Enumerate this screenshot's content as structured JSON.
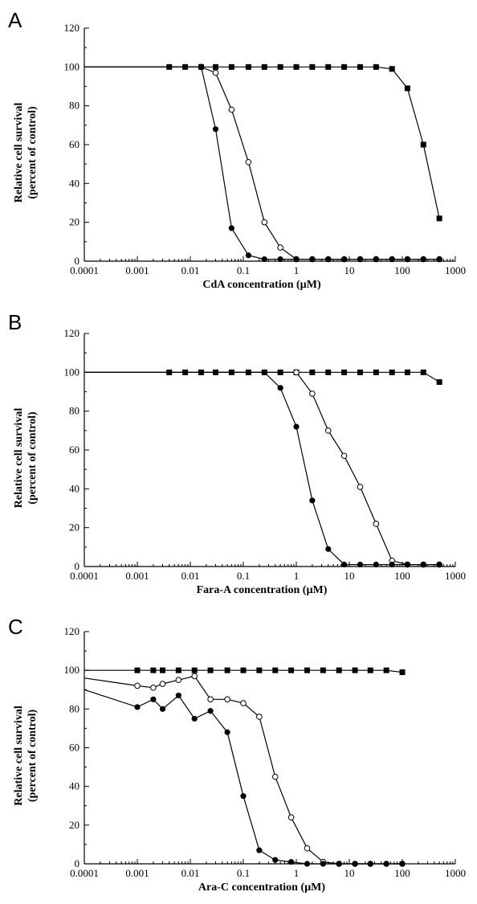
{
  "chart_data": [
    {
      "type": "line",
      "panel": "A",
      "xlabel": "CdA concentration (µM)",
      "ylabel": [
        "Relative cell survival",
        "(percent of control)"
      ],
      "xscale": "log",
      "xlim": [
        0.0001,
        1000
      ],
      "ylim": [
        0,
        120
      ],
      "x_ticks": [
        "0.0001",
        "0.001",
        "0.01",
        "0.1",
        "1",
        "10",
        "100",
        "1000"
      ],
      "y_ticks": [
        "0",
        "20",
        "40",
        "60",
        "80",
        "100",
        "120"
      ],
      "grid": false,
      "series": [
        {
          "marker": "filled-square",
          "lead_in": [
            0.0001,
            100
          ],
          "x": [
            0.004,
            0.008,
            0.016,
            0.03,
            0.06,
            0.125,
            0.25,
            0.5,
            1,
            2,
            4,
            8,
            16,
            32,
            64,
            125,
            250,
            500
          ],
          "y": [
            100,
            100,
            100,
            100,
            100,
            100,
            100,
            100,
            100,
            100,
            100,
            100,
            100,
            100,
            99,
            89,
            60,
            22
          ]
        },
        {
          "marker": "open-circle",
          "lead_in": [
            0.0001,
            100
          ],
          "x": [
            0.016,
            0.03,
            0.06,
            0.125,
            0.25,
            0.5,
            1,
            2,
            4,
            8,
            16,
            32,
            64,
            125,
            250,
            500
          ],
          "y": [
            100,
            97,
            78,
            51,
            20,
            7,
            1,
            1,
            1,
            1,
            1,
            1,
            1,
            1,
            1,
            1
          ]
        },
        {
          "marker": "filled-circle",
          "lead_in": [
            0.0001,
            100
          ],
          "x": [
            0.016,
            0.03,
            0.06,
            0.125,
            0.25,
            0.5,
            1,
            2,
            4,
            8,
            16,
            32,
            64,
            125,
            250,
            500
          ],
          "y": [
            100,
            68,
            17,
            3,
            1,
            1,
            1,
            1,
            1,
            1,
            1,
            1,
            1,
            1,
            1,
            1
          ]
        }
      ]
    },
    {
      "type": "line",
      "panel": "B",
      "xlabel": "Fara-A concentration (µM)",
      "ylabel": [
        "Relative cell survival",
        "(percent of control)"
      ],
      "xscale": "log",
      "xlim": [
        0.0001,
        1000
      ],
      "ylim": [
        0,
        120
      ],
      "x_ticks": [
        "0.0001",
        "0.001",
        "0.01",
        "0.1",
        "1",
        "10",
        "100",
        "1000"
      ],
      "y_ticks": [
        "0",
        "20",
        "40",
        "60",
        "80",
        "100",
        "120"
      ],
      "grid": false,
      "series": [
        {
          "marker": "filled-square",
          "lead_in": [
            0.0001,
            100
          ],
          "x": [
            0.004,
            0.008,
            0.016,
            0.03,
            0.06,
            0.125,
            0.25,
            0.5,
            1,
            2,
            4,
            8,
            16,
            32,
            64,
            125,
            250,
            500
          ],
          "y": [
            100,
            100,
            100,
            100,
            100,
            100,
            100,
            100,
            100,
            100,
            100,
            100,
            100,
            100,
            100,
            100,
            100,
            95
          ]
        },
        {
          "marker": "open-circle",
          "lead_in": [
            0.0001,
            100
          ],
          "x": [
            1,
            2,
            4,
            8,
            16,
            32,
            64,
            125,
            250,
            500
          ],
          "y": [
            100,
            89,
            70,
            57,
            41,
            22,
            3,
            1,
            1,
            1
          ]
        },
        {
          "marker": "filled-circle",
          "lead_in": [
            0.0001,
            100
          ],
          "x": [
            0.25,
            0.5,
            1,
            2,
            4,
            8,
            16,
            32,
            64,
            125,
            250,
            500
          ],
          "y": [
            100,
            92,
            72,
            34,
            9,
            1,
            1,
            1,
            1,
            1,
            1,
            1
          ]
        }
      ]
    },
    {
      "type": "line",
      "panel": "C",
      "xlabel": "Ara-C concentration (µM)",
      "ylabel": [
        "Relative cell survival",
        "(percent of control)"
      ],
      "xscale": "log",
      "xlim": [
        0.0001,
        1000
      ],
      "ylim": [
        0,
        120
      ],
      "x_ticks": [
        "0.0001",
        "0.001",
        "0.01",
        "0.1",
        "1",
        "10",
        "100",
        "1000"
      ],
      "y_ticks": [
        "0",
        "20",
        "40",
        "60",
        "80",
        "100",
        "120"
      ],
      "grid": false,
      "series": [
        {
          "marker": "filled-square",
          "lead_in": [
            0.0001,
            100
          ],
          "x": [
            0.001,
            0.002,
            0.003,
            0.006,
            0.012,
            0.024,
            0.05,
            0.1,
            0.2,
            0.4,
            0.8,
            1.6,
            3.2,
            6.4,
            12.8,
            25,
            50,
            100
          ],
          "y": [
            100,
            100,
            100,
            100,
            100,
            100,
            100,
            100,
            100,
            100,
            100,
            100,
            100,
            100,
            100,
            100,
            100,
            99
          ]
        },
        {
          "marker": "open-circle",
          "lead_in": [
            0.0001,
            96
          ],
          "x": [
            0.001,
            0.002,
            0.003,
            0.006,
            0.012,
            0.024,
            0.05,
            0.1,
            0.2,
            0.4,
            0.8,
            1.6,
            3.2,
            6.4,
            12.8,
            25,
            50,
            100
          ],
          "y": [
            92,
            91,
            93,
            95,
            97,
            85,
            85,
            83,
            76,
            45,
            24,
            8,
            1,
            0,
            0,
            0,
            0,
            0
          ]
        },
        {
          "marker": "filled-circle",
          "lead_in": [
            0.0001,
            90
          ],
          "x": [
            0.001,
            0.002,
            0.003,
            0.006,
            0.012,
            0.024,
            0.05,
            0.1,
            0.2,
            0.4,
            0.8,
            1.6,
            3.2,
            6.4,
            12.8,
            25,
            50,
            100
          ],
          "y": [
            81,
            85,
            80,
            87,
            75,
            79,
            68,
            35,
            7,
            2,
            1,
            0,
            0,
            0,
            0,
            0,
            0,
            0
          ]
        }
      ]
    }
  ]
}
